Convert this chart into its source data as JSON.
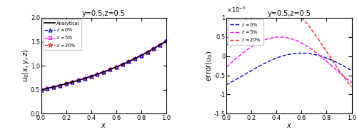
{
  "title": "y=0.5,z=0.5",
  "left_ylabel": "$u_0(x,y,z)$",
  "left_xlabel": "$x$",
  "left_ylim": [
    0,
    2
  ],
  "left_xlim": [
    0,
    1
  ],
  "left_yticks": [
    0,
    0.5,
    1.0,
    1.5,
    2.0
  ],
  "right_ylabel": "$\\mathrm{error}(u_0)$",
  "right_xlabel": "$x$",
  "right_ylim": [
    -1.5e-05,
    1e-05
  ],
  "right_xlim": [
    0,
    1
  ],
  "colors": {
    "analytical": "#000000",
    "eps0": "#0000CD",
    "eps5": "#FF00FF",
    "eps20": "#FF2020"
  },
  "legend_labels": {
    "analytical": "Analytical",
    "eps0": "$\\varepsilon$ =0%",
    "eps5": "$\\varepsilon$ =5%",
    "eps20": "$\\varepsilon$ =20%"
  },
  "n_points": 300,
  "n_marker_points": 21
}
